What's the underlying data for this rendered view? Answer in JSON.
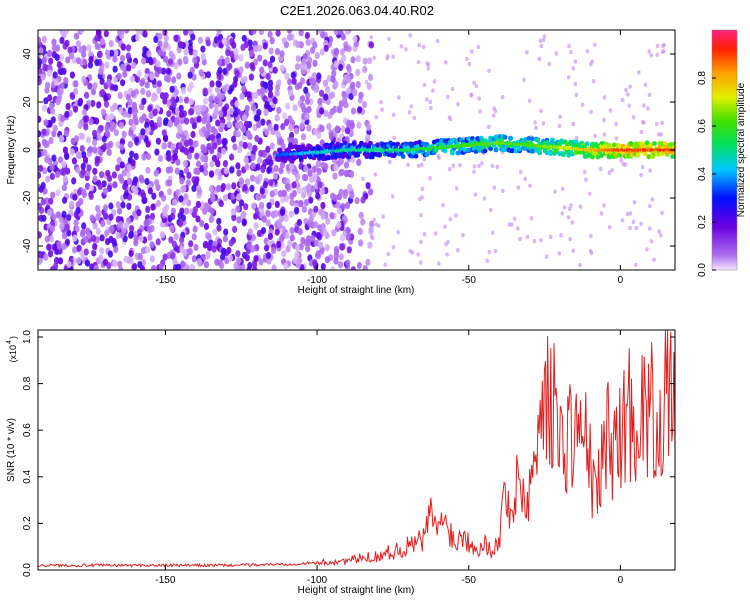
{
  "title": "C2E1.2026.063.04.40.R02",
  "colors": {
    "snr_line": "#e02020",
    "axis": "#000000"
  },
  "chart_data": [
    {
      "type": "heatmap",
      "xlabel": "Height of straight line (km)",
      "ylabel": "Frequency (Hz)",
      "xlim": [
        -192,
        18
      ],
      "ylim": [
        -50,
        50
      ],
      "xticks": [
        -150,
        -100,
        -50,
        0
      ],
      "yticks": [
        40,
        20,
        0,
        -20,
        -40
      ],
      "colorbar": {
        "label": "Normalized spectral amplitude",
        "range": [
          0,
          1
        ],
        "ticks": [
          "0.0",
          "0.2",
          "0.4",
          "0.6",
          "0.8"
        ],
        "tick_values": [
          0,
          0.2,
          0.4,
          0.6,
          0.8
        ],
        "colormap": "rainbow"
      },
      "ridge": [
        {
          "x": -112,
          "y": -2,
          "amp": 0.35
        },
        {
          "x": -100,
          "y": -1,
          "amp": 0.45
        },
        {
          "x": -90,
          "y": 0,
          "amp": 0.5
        },
        {
          "x": -80,
          "y": 0,
          "amp": 0.5
        },
        {
          "x": -70,
          "y": 0,
          "amp": 0.55
        },
        {
          "x": -60,
          "y": 1,
          "amp": 0.6
        },
        {
          "x": -50,
          "y": 2,
          "amp": 0.62
        },
        {
          "x": -40,
          "y": 3,
          "amp": 0.65
        },
        {
          "x": -30,
          "y": 2,
          "amp": 0.62
        },
        {
          "x": -20,
          "y": 1,
          "amp": 0.7
        },
        {
          "x": -10,
          "y": 0,
          "amp": 0.8
        },
        {
          "x": 0,
          "y": 0,
          "amp": 0.9
        },
        {
          "x": 18,
          "y": 0,
          "amp": 0.9
        }
      ]
    },
    {
      "type": "line",
      "xlabel": "Height of straight line (km)",
      "ylabel": "SNR (10 * v/v)",
      "y_multiplier": "(x10",
      "y_multiplier_exp": "4",
      "xlim": [
        -192,
        18
      ],
      "ylim": [
        0,
        1.03
      ],
      "xticks": [
        -150,
        -100,
        -50,
        0
      ],
      "yticks": [
        "0.0",
        "0.2",
        "0.4",
        "0.6",
        "0.8",
        "1.0"
      ],
      "ytick_values": [
        0,
        0.2,
        0.4,
        0.6,
        0.8,
        1.0
      ],
      "x": [
        -192,
        -170,
        -150,
        -130,
        -110,
        -100,
        -90,
        -80,
        -75,
        -70,
        -65,
        -62,
        -60,
        -57,
        -55,
        -52,
        -50,
        -47,
        -45,
        -42,
        -40,
        -38,
        -36,
        -33,
        -31,
        -29,
        -27,
        -25,
        -24,
        -23,
        -21,
        -20,
        -17,
        -15,
        -12,
        -10,
        -8,
        -6,
        -4,
        -2,
        0,
        3,
        6,
        9,
        12,
        15,
        18
      ],
      "values": [
        0.02,
        0.02,
        0.02,
        0.02,
        0.025,
        0.03,
        0.04,
        0.06,
        0.08,
        0.1,
        0.13,
        0.25,
        0.17,
        0.22,
        0.12,
        0.15,
        0.13,
        0.1,
        0.11,
        0.09,
        0.12,
        0.35,
        0.25,
        0.4,
        0.28,
        0.42,
        0.55,
        0.95,
        0.7,
        0.8,
        0.65,
        0.52,
        0.6,
        0.6,
        0.58,
        0.45,
        0.3,
        0.48,
        0.58,
        0.52,
        0.58,
        0.68,
        0.66,
        0.7,
        0.65,
        0.72,
        0.7
      ]
    }
  ]
}
